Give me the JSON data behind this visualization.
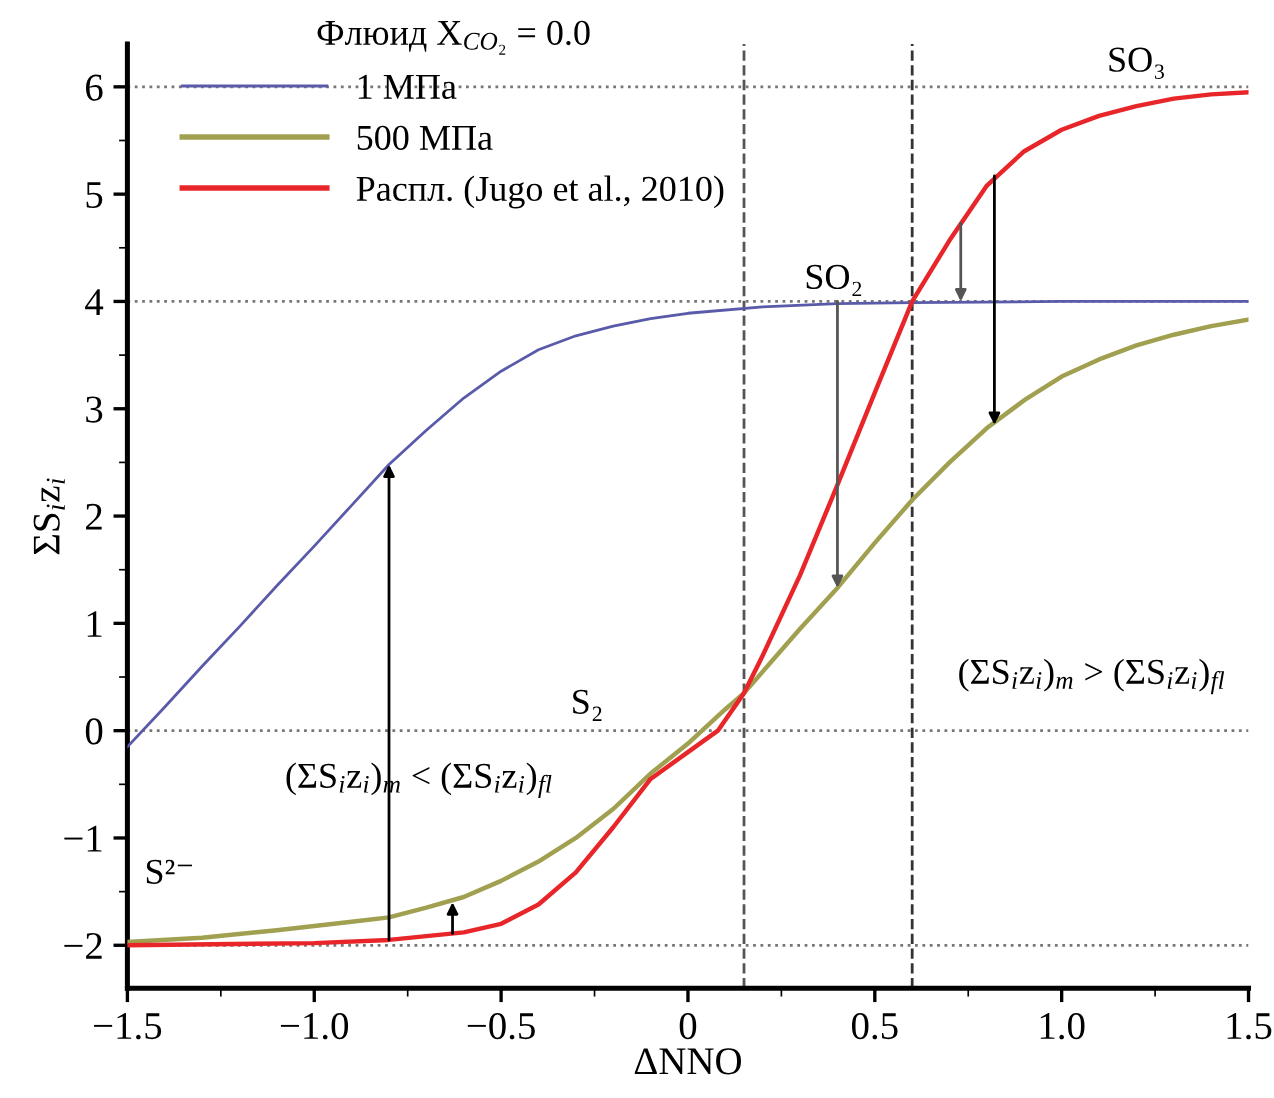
{
  "chart_data": {
    "type": "line",
    "xlabel": "ΔNNO",
    "ylabel": "ΣS$_{i}$z$_{i}$",
    "legend_title": "Флюид X$_{CO₂}$ = 0.0",
    "xlim": [
      -1.5,
      1.5
    ],
    "ylim": [
      -2.4,
      6.4
    ],
    "xticks": [
      {
        "value": -1.5,
        "label": "−1.5"
      },
      {
        "value": -1.0,
        "label": "−1.0"
      },
      {
        "value": -0.5,
        "label": "−0.5"
      },
      0,
      0.5,
      {
        "value": 1.0,
        "label": "1.0"
      },
      1.5
    ],
    "yticks": [
      {
        "value": -2,
        "label": "−2"
      },
      {
        "value": -1,
        "label": "−1"
      },
      0,
      1,
      2,
      3,
      4,
      5,
      6
    ],
    "legend": "top left",
    "grid": false,
    "series": [
      {
        "name": "1 МПа",
        "color": "#5a5aaa",
        "x": [
          -1.5,
          -1.4,
          -1.3,
          -1.2,
          -1.1,
          -1.0,
          -0.9,
          -0.8,
          -0.7,
          -0.6,
          -0.5,
          -0.4,
          -0.3,
          -0.2,
          -0.1,
          0,
          0.2,
          0.4,
          0.6,
          1.0,
          1.5
        ],
        "values": [
          -0.15,
          0.22,
          0.6,
          0.97,
          1.35,
          1.72,
          2.1,
          2.48,
          2.8,
          3.1,
          3.35,
          3.55,
          3.68,
          3.77,
          3.84,
          3.89,
          3.95,
          3.98,
          3.99,
          4.0,
          4.0
        ]
      },
      {
        "name": "500 МПа",
        "color": "#a0a050",
        "x": [
          -1.5,
          -1.3,
          -1.1,
          -0.9,
          -0.8,
          -0.7,
          -0.6,
          -0.5,
          -0.4,
          -0.3,
          -0.2,
          -0.1,
          0,
          0.1,
          0.15,
          0.2,
          0.3,
          0.4,
          0.5,
          0.6,
          0.7,
          0.8,
          0.9,
          1.0,
          1.1,
          1.2,
          1.3,
          1.4,
          1.5
        ],
        "values": [
          -1.97,
          -1.93,
          -1.86,
          -1.78,
          -1.74,
          -1.65,
          -1.55,
          -1.4,
          -1.22,
          -1.0,
          -0.73,
          -0.4,
          -0.12,
          0.2,
          0.35,
          0.55,
          0.95,
          1.33,
          1.75,
          2.15,
          2.5,
          2.82,
          3.08,
          3.3,
          3.46,
          3.59,
          3.69,
          3.77,
          3.83
        ]
      },
      {
        "name": "Распл. (Jugo et al., 2010)",
        "color": "#e8262a",
        "x": [
          -1.5,
          -1.0,
          -0.8,
          -0.6,
          -0.5,
          -0.4,
          -0.3,
          -0.2,
          -0.1,
          0,
          0.08,
          0.15,
          0.2,
          0.3,
          0.4,
          0.5,
          0.6,
          0.7,
          0.8,
          0.9,
          1.0,
          1.1,
          1.2,
          1.3,
          1.4,
          1.5
        ],
        "values": [
          -2.0,
          -1.98,
          -1.95,
          -1.88,
          -1.8,
          -1.62,
          -1.32,
          -0.9,
          -0.45,
          -0.2,
          0.0,
          0.35,
          0.7,
          1.45,
          2.29,
          3.15,
          4.0,
          4.57,
          5.08,
          5.4,
          5.6,
          5.73,
          5.82,
          5.89,
          5.93,
          5.95
        ]
      },
      {
        "color": "#000000",
        "x": [
          -0.8,
          -0.8
        ],
        "values": [
          -1.95,
          2.48
        ]
      },
      {
        "color": "#000000",
        "x": [
          -0.63,
          -0.63
        ],
        "values": [
          -1.89,
          -1.6
        ]
      },
      {
        "color": "#555555",
        "x": [
          0.4,
          0.4
        ],
        "values": [
          4.0,
          1.33
        ]
      },
      {
        "color": "#555555",
        "x": [
          0.73,
          0.73
        ],
        "values": [
          4.73,
          4.0
        ]
      },
      {
        "color": "#000000",
        "x": [
          0.82,
          0.82
        ],
        "values": [
          5.17,
          2.85
        ]
      }
    ],
    "ref_lines": [
      {
        "axis": "y",
        "value": 6,
        "color": "#777777",
        "line_style": "dotted"
      },
      {
        "axis": "y",
        "value": 4,
        "color": "#777777",
        "line_style": "dotted"
      },
      {
        "axis": "y",
        "value": 0,
        "color": "#777777",
        "line_style": "dotted"
      },
      {
        "axis": "y",
        "value": -2,
        "color": "#777777",
        "line_style": "dotted"
      },
      {
        "axis": "x",
        "value": 0.15,
        "color": "#555555",
        "line_style": "dashed"
      },
      {
        "axis": "x",
        "value": 0.6,
        "color": "#333333",
        "line_style": "dashed"
      }
    ],
    "annotations": [
      "SO₃",
      "SO₂",
      "S₂",
      "S²⁻",
      "(ΣS$_{i}$z$_{i}$)$_{m}$ < (ΣS$_{i}$z$_{i}$)$_{fl}$",
      "(ΣS$_{i}$z$_{i}$)$_{m}$ > (ΣS$_{i}$z$_{i}$)$_{fl}$"
    ]
  }
}
